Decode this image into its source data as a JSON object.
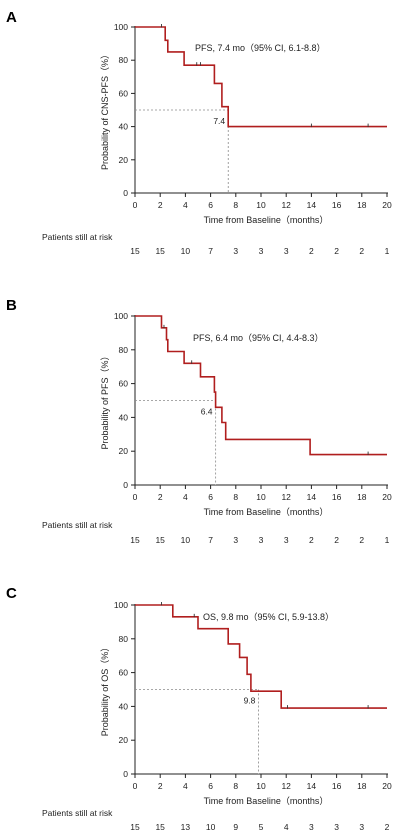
{
  "chart_data": [
    {
      "type": "line",
      "panel": "A",
      "ylabel": "Probability of  CNS-PFS（%）",
      "xlabel": "Time from Baseline（months）",
      "xlim": [
        0,
        20
      ],
      "ylim": [
        0,
        100
      ],
      "xticks": [
        "0",
        "2",
        "4",
        "6",
        "8",
        "10",
        "12",
        "14",
        "16",
        "18",
        "20"
      ],
      "yticks": [
        "0",
        "20",
        "40",
        "60",
        "80",
        "100"
      ],
      "annotation": "PFS, 7.4 mo（95% CI, 6.1-8.8）",
      "median_label": "7.4",
      "median_x": 7.4,
      "series": [
        {
          "x": [
            0,
            2.4,
            2.4,
            2.6,
            2.6,
            3.9,
            3.9,
            6.3,
            6.3,
            6.9,
            6.9,
            7.4,
            7.4,
            20
          ],
          "y": [
            100,
            100,
            92,
            92,
            85,
            85,
            77,
            77,
            66,
            66,
            52,
            52,
            40,
            40
          ],
          "censor_x": [
            2.1,
            4.9,
            5.2,
            14.0,
            18.5
          ],
          "censor_y": [
            100,
            77,
            77,
            40,
            40
          ]
        }
      ],
      "risk_title": "Patients still at risk",
      "risk_values": [
        "15",
        "15",
        "10",
        "7",
        "3",
        "3",
        "3",
        "2",
        "2",
        "2",
        "1"
      ]
    },
    {
      "type": "line",
      "panel": "B",
      "ylabel": "Probability of  PFS（%）",
      "xlabel": "Time from Baseline（months）",
      "xlim": [
        0,
        20
      ],
      "ylim": [
        0,
        100
      ],
      "xticks": [
        "0",
        "2",
        "4",
        "6",
        "8",
        "10",
        "12",
        "14",
        "16",
        "18",
        "20"
      ],
      "yticks": [
        "0",
        "20",
        "40",
        "60",
        "80",
        "100"
      ],
      "annotation": "PFS, 6.4 mo（95% CI, 4.4-8.3）",
      "median_label": "6.4",
      "median_x": 6.4,
      "series": [
        {
          "x": [
            0,
            2.1,
            2.1,
            2.5,
            2.5,
            2.6,
            2.6,
            3.9,
            3.9,
            5.2,
            5.2,
            6.3,
            6.3,
            6.4,
            6.4,
            6.9,
            6.9,
            7.2,
            7.2,
            13.9,
            13.9,
            20
          ],
          "y": [
            100,
            100,
            93,
            93,
            86,
            86,
            79,
            79,
            72,
            72,
            64,
            64,
            55,
            55,
            46,
            46,
            37,
            37,
            27,
            27,
            18,
            18
          ],
          "censor_x": [
            2.3,
            4.5,
            18.5
          ],
          "censor_y": [
            93,
            72,
            18
          ]
        }
      ],
      "risk_title": "Patients still at risk",
      "risk_values": [
        "15",
        "15",
        "10",
        "7",
        "3",
        "3",
        "3",
        "2",
        "2",
        "2",
        "1"
      ]
    },
    {
      "type": "line",
      "panel": "C",
      "ylabel": "Probability of OS（%）",
      "xlabel": "Time from Baseline（months）",
      "xlim": [
        0,
        20
      ],
      "ylim": [
        0,
        100
      ],
      "xticks": [
        "0",
        "2",
        "4",
        "6",
        "8",
        "10",
        "12",
        "14",
        "16",
        "18",
        "20"
      ],
      "yticks": [
        "0",
        "20",
        "40",
        "60",
        "80",
        "100"
      ],
      "annotation": "OS, 9.8 mo（95% CI, 5.9-13.8）",
      "median_label": "9.8",
      "median_x": 9.8,
      "series": [
        {
          "x": [
            0,
            3.0,
            3.0,
            5.0,
            5.0,
            7.4,
            7.4,
            8.3,
            8.3,
            8.9,
            8.9,
            9.2,
            9.2,
            9.8,
            9.8,
            11.6,
            11.6,
            20
          ],
          "y": [
            100,
            100,
            93,
            93,
            86,
            86,
            77,
            77,
            69,
            69,
            59,
            59,
            49,
            49,
            49,
            49,
            39,
            39
          ],
          "censor_x": [
            2.1,
            4.7,
            12.1,
            18.5
          ],
          "censor_y": [
            100,
            93,
            39,
            39
          ]
        }
      ],
      "risk_title": "Patients still at risk",
      "risk_values": [
        "15",
        "15",
        "13",
        "10",
        "9",
        "5",
        "4",
        "3",
        "3",
        "3",
        "2"
      ]
    }
  ],
  "colors": {
    "curve": "#b01e1e",
    "axis": "#222222",
    "ref": "#8a8a8a"
  }
}
